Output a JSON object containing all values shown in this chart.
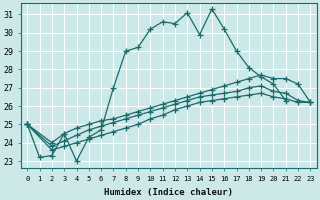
{
  "xlabel": "Humidex (Indice chaleur)",
  "background_color": "#cce8e8",
  "grid_color": "#b8d8d8",
  "line_color": "#1a6b6b",
  "xlim": [
    -0.5,
    23.5
  ],
  "ylim": [
    22.6,
    31.6
  ],
  "yticks": [
    23,
    24,
    25,
    26,
    27,
    28,
    29,
    30,
    31
  ],
  "xticks": [
    0,
    1,
    2,
    3,
    4,
    5,
    6,
    7,
    8,
    9,
    10,
    11,
    12,
    13,
    14,
    15,
    16,
    17,
    18,
    19,
    20,
    21,
    22,
    23
  ],
  "series": [
    {
      "x": [
        0,
        1,
        2,
        3,
        4,
        5,
        6,
        7,
        8,
        9,
        10,
        11,
        12,
        13,
        14,
        15,
        16,
        17,
        18,
        19,
        20,
        21
      ],
      "y": [
        25.0,
        23.2,
        23.3,
        24.5,
        23.0,
        24.3,
        24.7,
        27.0,
        29.0,
        29.2,
        30.2,
        30.6,
        30.5,
        31.1,
        29.9,
        31.3,
        30.2,
        29.0,
        28.1,
        27.6,
        27.2,
        26.3
      ]
    },
    {
      "x": [
        0,
        2,
        3,
        4,
        5,
        6,
        7,
        8,
        9,
        10,
        11,
        12,
        13,
        14,
        15,
        16,
        17,
        18,
        19,
        20,
        21,
        22,
        23
      ],
      "y": [
        25.0,
        24.0,
        24.5,
        24.8,
        25.0,
        25.2,
        25.3,
        25.5,
        25.7,
        25.9,
        26.1,
        26.3,
        26.5,
        26.7,
        26.9,
        27.1,
        27.3,
        27.5,
        27.7,
        27.5,
        27.5,
        27.2,
        26.2
      ]
    },
    {
      "x": [
        0,
        2,
        3,
        4,
        5,
        6,
        7,
        8,
        9,
        10,
        11,
        12,
        13,
        14,
        15,
        16,
        17,
        18,
        19,
        20,
        21,
        22,
        23
      ],
      "y": [
        25.0,
        23.8,
        24.1,
        24.4,
        24.7,
        24.9,
        25.1,
        25.3,
        25.5,
        25.7,
        25.9,
        26.1,
        26.3,
        26.5,
        26.6,
        26.7,
        26.8,
        27.0,
        27.1,
        26.8,
        26.7,
        26.3,
        26.2
      ]
    },
    {
      "x": [
        0,
        2,
        3,
        4,
        5,
        6,
        7,
        8,
        9,
        10,
        11,
        12,
        13,
        14,
        15,
        16,
        17,
        18,
        19,
        20,
        21,
        22,
        23
      ],
      "y": [
        25.0,
        23.6,
        23.8,
        24.0,
        24.2,
        24.4,
        24.6,
        24.8,
        25.0,
        25.3,
        25.5,
        25.8,
        26.0,
        26.2,
        26.3,
        26.4,
        26.5,
        26.6,
        26.7,
        26.5,
        26.4,
        26.2,
        26.2
      ]
    }
  ]
}
